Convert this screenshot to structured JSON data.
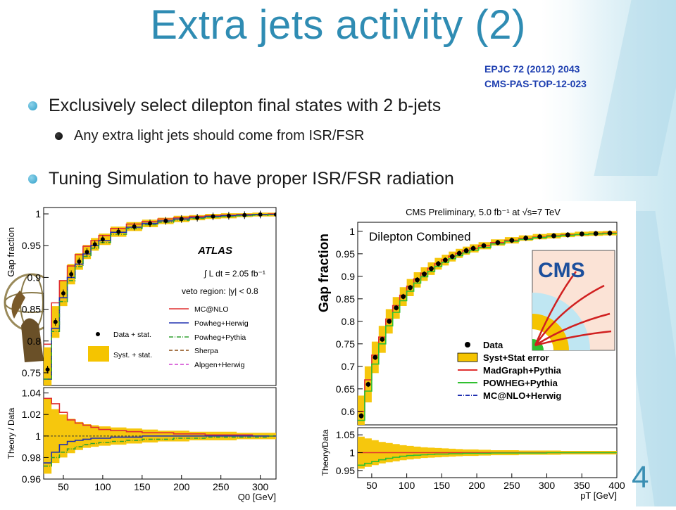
{
  "slide": {
    "title": "Extra jets activity (2)",
    "refs": [
      "EPJC 72 (2012) 2043",
      "CMS-PAS-TOP-12-023"
    ],
    "bullets": [
      {
        "level": 1,
        "text": "Exclusively select dilepton final states with 2 b-jets"
      },
      {
        "level": 2,
        "text": "Any extra light jets should come from ISR/FSR"
      },
      {
        "level": 1,
        "text": "Tuning Simulation to have proper ISR/FSR radiation"
      }
    ],
    "page_number": "4",
    "colors": {
      "title": "#2f8cb3",
      "ref": "#1e3fb0",
      "bullet_l1": "#2f9fc9"
    }
  },
  "chart_data": [
    {
      "type": "line",
      "experiment": "ATLAS",
      "annotations": [
        "ATLAS",
        "∫ L dt = 2.05 fb⁻¹",
        "veto region: |y| < 0.8"
      ],
      "xlabel": "Q0 [GeV]",
      "ylabel": "Gap fraction",
      "ratio_ylabel": "Theory / Data",
      "xlim": [
        25,
        320
      ],
      "ylim": [
        0.73,
        1.01
      ],
      "ratio_ylim": [
        0.96,
        1.045
      ],
      "x_ticks": [
        "50",
        "100",
        "150",
        "200",
        "250",
        "300"
      ],
      "y_ticks": [
        "0.75",
        "0.8",
        "0.85",
        "0.9",
        "0.95",
        "1"
      ],
      "ratio_y_ticks": [
        "0.96",
        "0.98",
        "1",
        "1.02",
        "1.04"
      ],
      "legend": [
        {
          "label": "MC@NLO",
          "color": "#e03030",
          "style": "solid"
        },
        {
          "label": "Data + stat.",
          "color": "#000000",
          "style": "marker"
        },
        {
          "label": "Powheg+Herwig",
          "color": "#2030b0",
          "style": "solid"
        },
        {
          "label": "Powheg+Pythia",
          "color": "#30a030",
          "style": "dashdot"
        },
        {
          "label": "Syst. + stat.",
          "color": "#f5c400",
          "style": "band"
        },
        {
          "label": "Sherpa",
          "color": "#8a4a10",
          "style": "dashed"
        },
        {
          "label": "Alpgen+Herwig",
          "color": "#d040d0",
          "style": "dashed"
        }
      ],
      "x": [
        30,
        40,
        50,
        60,
        70,
        80,
        90,
        100,
        120,
        140,
        160,
        180,
        200,
        220,
        240,
        260,
        280,
        300,
        320
      ],
      "series": [
        {
          "name": "Data + stat.",
          "values": [
            0.755,
            0.83,
            0.875,
            0.905,
            0.925,
            0.94,
            0.952,
            0.96,
            0.972,
            0.98,
            0.985,
            0.989,
            0.992,
            0.994,
            0.996,
            0.997,
            0.998,
            0.999,
            0.999
          ]
        },
        {
          "name": "MC@NLO",
          "values": [
            0.795,
            0.86,
            0.895,
            0.918,
            0.936,
            0.949,
            0.958,
            0.966,
            0.977,
            0.984,
            0.988,
            0.992,
            0.994,
            0.996,
            0.997,
            0.998,
            0.999,
            0.999,
            1.0
          ]
        },
        {
          "name": "Powheg+Herwig",
          "values": [
            0.74,
            0.82,
            0.868,
            0.9,
            0.921,
            0.937,
            0.95,
            0.958,
            0.971,
            0.979,
            0.985,
            0.989,
            0.992,
            0.994,
            0.996,
            0.997,
            0.998,
            0.999,
            0.999
          ]
        },
        {
          "name": "Powheg+Pythia",
          "values": [
            0.74,
            0.815,
            0.862,
            0.895,
            0.917,
            0.933,
            0.946,
            0.955,
            0.968,
            0.977,
            0.983,
            0.987,
            0.99,
            0.993,
            0.995,
            0.996,
            0.997,
            0.998,
            0.999
          ]
        }
      ],
      "ratio_series": [
        {
          "name": "MC@NLO",
          "values": [
            1.035,
            1.03,
            1.022,
            1.015,
            1.012,
            1.01,
            1.008,
            1.006,
            1.005,
            1.004,
            1.003,
            1.003,
            1.002,
            1.002,
            1.001,
            1.001,
            1.001,
            1.0,
            1.0
          ]
        },
        {
          "name": "Powheg+Herwig",
          "values": [
            0.975,
            0.985,
            0.992,
            0.995,
            0.996,
            0.997,
            0.998,
            0.998,
            0.999,
            0.999,
            1.0,
            1.0,
            1.0,
            1.0,
            1.0,
            1.0,
            1.0,
            1.0,
            1.0
          ]
        },
        {
          "name": "Powheg+Pythia",
          "values": [
            0.972,
            0.98,
            0.985,
            0.988,
            0.99,
            0.992,
            0.993,
            0.994,
            0.995,
            0.996,
            0.997,
            0.997,
            0.998,
            0.998,
            0.999,
            0.999,
            0.999,
            0.999,
            1.0
          ]
        }
      ],
      "band_halfwidth": [
        0.035,
        0.025,
        0.02,
        0.016,
        0.013,
        0.011,
        0.01,
        0.009,
        0.008,
        0.007,
        0.006,
        0.005,
        0.005,
        0.004,
        0.004,
        0.004,
        0.003,
        0.003,
        0.003
      ]
    },
    {
      "type": "line",
      "experiment": "CMS",
      "title": "CMS Preliminary, 5.0 fb⁻¹ at √s=7 TeV",
      "annotation": "Dilepton Combined",
      "xlabel": "pT [GeV]",
      "ylabel": "Gap fraction",
      "ratio_ylabel": "Theory/Data",
      "xlim": [
        30,
        400
      ],
      "ylim": [
        0.57,
        1.02
      ],
      "ratio_ylim": [
        0.93,
        1.07
      ],
      "x_ticks": [
        "50",
        "100",
        "150",
        "200",
        "250",
        "300",
        "350",
        "400"
      ],
      "y_ticks": [
        "0.6",
        "0.65",
        "0.7",
        "0.75",
        "0.8",
        "0.85",
        "0.9",
        "0.95",
        "1"
      ],
      "ratio_y_ticks": [
        "0.95",
        "1",
        "1.05"
      ],
      "legend": [
        {
          "label": "Data",
          "color": "#000000",
          "style": "marker"
        },
        {
          "label": "Syst+Stat error",
          "color": "#f5c400",
          "style": "band"
        },
        {
          "label": "MadGraph+Pythia",
          "color": "#e03030",
          "style": "solid"
        },
        {
          "label": "POWHEG+Pythia",
          "color": "#30c030",
          "style": "solid"
        },
        {
          "label": "MC@NLO+Herwig",
          "color": "#2030b0",
          "style": "dashdot"
        }
      ],
      "x": [
        35,
        45,
        55,
        65,
        75,
        85,
        95,
        105,
        115,
        125,
        135,
        145,
        155,
        165,
        175,
        185,
        195,
        210,
        230,
        250,
        270,
        290,
        310,
        330,
        350,
        370,
        390
      ],
      "series": [
        {
          "name": "Data",
          "values": [
            0.59,
            0.66,
            0.72,
            0.76,
            0.8,
            0.83,
            0.855,
            0.875,
            0.892,
            0.905,
            0.917,
            0.928,
            0.936,
            0.944,
            0.951,
            0.957,
            0.962,
            0.968,
            0.975,
            0.98,
            0.985,
            0.988,
            0.99,
            0.992,
            0.994,
            0.995,
            0.996
          ]
        },
        {
          "name": "MadGraph+Pythia",
          "values": [
            0.6,
            0.67,
            0.725,
            0.765,
            0.805,
            0.835,
            0.858,
            0.878,
            0.894,
            0.907,
            0.918,
            0.928,
            0.937,
            0.945,
            0.951,
            0.957,
            0.962,
            0.968,
            0.975,
            0.98,
            0.984,
            0.987,
            0.99,
            0.992,
            0.993,
            0.995,
            0.996
          ]
        },
        {
          "name": "POWHEG+Pythia",
          "values": [
            0.58,
            0.645,
            0.705,
            0.75,
            0.79,
            0.82,
            0.846,
            0.867,
            0.885,
            0.899,
            0.911,
            0.922,
            0.931,
            0.939,
            0.946,
            0.952,
            0.958,
            0.964,
            0.972,
            0.978,
            0.982,
            0.986,
            0.989,
            0.991,
            0.993,
            0.994,
            0.995
          ]
        }
      ],
      "ratio_series": [
        {
          "name": "MadGraph+Pythia",
          "values": [
            1.0,
            1.0,
            1.0,
            1.0,
            1.0,
            1.0,
            1.0,
            1.0,
            1.0,
            1.0,
            1.0,
            1.0,
            1.0,
            1.0,
            1.0,
            1.0,
            1.0,
            1.0,
            1.0,
            1.0,
            1.0,
            1.0,
            1.0,
            1.0,
            1.0,
            1.0,
            1.0
          ]
        },
        {
          "name": "POWHEG+Pythia",
          "values": [
            0.965,
            0.97,
            0.975,
            0.98,
            0.984,
            0.987,
            0.99,
            0.992,
            0.993,
            0.994,
            0.995,
            0.996,
            0.996,
            0.997,
            0.997,
            0.998,
            0.998,
            0.998,
            0.999,
            0.999,
            0.999,
            0.999,
            1.0,
            1.0,
            1.0,
            1.0,
            1.0
          ]
        }
      ],
      "band_halfwidth": [
        0.045,
        0.04,
        0.035,
        0.03,
        0.027,
        0.024,
        0.021,
        0.019,
        0.017,
        0.015,
        0.014,
        0.013,
        0.012,
        0.011,
        0.01,
        0.009,
        0.009,
        0.008,
        0.007,
        0.007,
        0.006,
        0.006,
        0.006,
        0.005,
        0.005,
        0.005,
        0.005
      ]
    }
  ]
}
